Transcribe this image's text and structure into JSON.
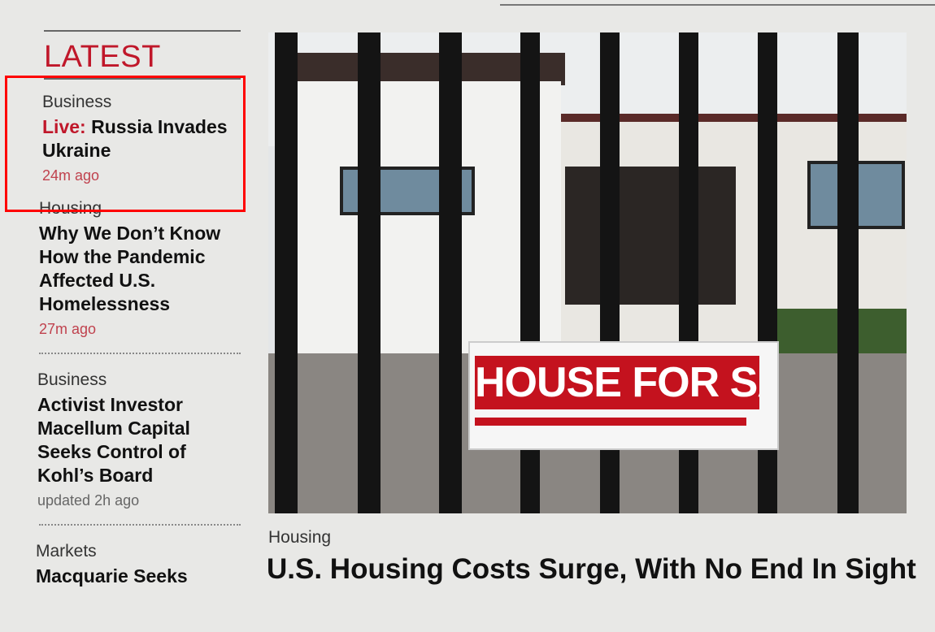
{
  "sidebar": {
    "heading": "LATEST",
    "items": [
      {
        "category": "Business",
        "prefix": "Live:",
        "title": "Russia Invades Ukraine",
        "time": "24m ago"
      },
      {
        "category": "Housing",
        "title": "Why We Don’t Know How the Pandemic Affected U.S. Homelessness",
        "time": "27m ago"
      },
      {
        "category": "Business",
        "title": "Activist Investor Macellum Capital Seeks Control of Kohl’s Board",
        "time": "updated 2h ago"
      },
      {
        "category": "Markets",
        "title": "Macquarie Seeks"
      }
    ]
  },
  "main": {
    "image_sign_text": "HOUSE FOR SALE",
    "category": "Housing",
    "title": "U.S. Housing Costs Surge, With No End In Sight"
  },
  "colors": {
    "accent": "#c0172a",
    "highlight": "#ff0000"
  }
}
